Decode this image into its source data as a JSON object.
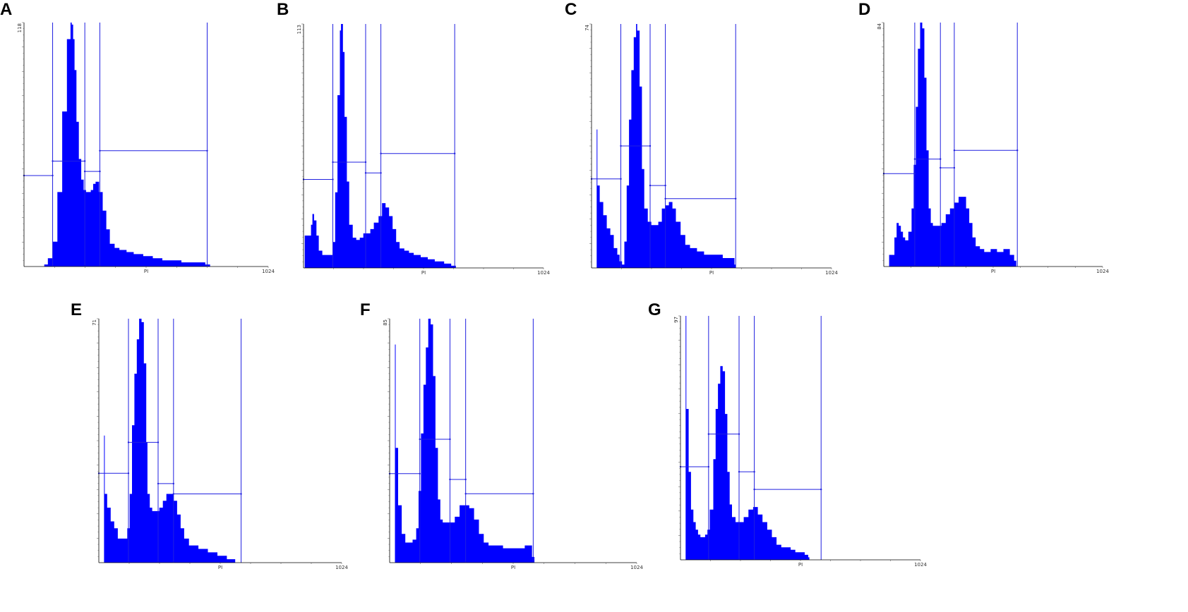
{
  "colors": {
    "fill": "#0000ff",
    "gate": "#2020e0",
    "axis": "#000000"
  },
  "x_axis_label": "PI",
  "x_axis_max_label": "1024",
  "chart_data": [
    {
      "type": "area",
      "letter": "A",
      "xlabel": "PI",
      "xlim": [
        0,
        1024
      ],
      "ylim": [
        0,
        118
      ],
      "ymax_label": "118",
      "series": [
        {
          "x": [
            0,
            60,
            85,
            100,
            120,
            140,
            160,
            180,
            195,
            200,
            206,
            212,
            220,
            230,
            240,
            250,
            260,
            270,
            280,
            290,
            300,
            315,
            330,
            345,
            360,
            380,
            400,
            430,
            460,
            500,
            540,
            580,
            620,
            660,
            700,
            760,
            770,
            780,
            1024
          ],
          "y": [
            0,
            0,
            1,
            4,
            12,
            36,
            75,
            110,
            118,
            117,
            110,
            95,
            70,
            52,
            42,
            37,
            36,
            36,
            37,
            40,
            41,
            36,
            27,
            18,
            11,
            9,
            8,
            7,
            6,
            5,
            4,
            3,
            3,
            2,
            2,
            1,
            1,
            0,
            0
          ]
        }
      ],
      "gate_lines": [
        120,
        255,
        318,
        768
      ],
      "markers": [
        {
          "x1": 0,
          "x2": 120,
          "y": 44
        },
        {
          "x1": 120,
          "x2": 255,
          "y": 51
        },
        {
          "x1": 255,
          "x2": 318,
          "y": 46
        },
        {
          "x1": 318,
          "x2": 768,
          "y": 56
        }
      ]
    },
    {
      "type": "area",
      "letter": "B",
      "xlabel": "PI",
      "xlim": [
        0,
        1024
      ],
      "ylim": [
        0,
        113
      ],
      "ymax_label": "113",
      "series": [
        {
          "x": [
            0,
            5,
            15,
            25,
            32,
            38,
            45,
            55,
            65,
            80,
            95,
            110,
            125,
            135,
            145,
            155,
            160,
            168,
            175,
            185,
            195,
            210,
            225,
            240,
            255,
            270,
            285,
            300,
            320,
            335,
            350,
            365,
            380,
            395,
            410,
            430,
            450,
            470,
            500,
            530,
            560,
            600,
            630,
            640,
            650,
            1024
          ],
          "y": [
            0,
            15,
            15,
            15,
            20,
            25,
            22,
            15,
            8,
            6,
            6,
            6,
            12,
            35,
            80,
            110,
            113,
            100,
            70,
            40,
            20,
            14,
            13,
            14,
            16,
            16,
            18,
            21,
            24,
            30,
            28,
            24,
            18,
            12,
            9,
            8,
            7,
            6,
            5,
            4,
            3,
            2,
            1,
            1,
            0,
            0
          ]
        }
      ],
      "gate_lines": [
        125,
        265,
        330,
        645
      ],
      "markers": [
        {
          "x1": 0,
          "x2": 125,
          "y": 41
        },
        {
          "x1": 125,
          "x2": 265,
          "y": 49
        },
        {
          "x1": 265,
          "x2": 330,
          "y": 44
        },
        {
          "x1": 330,
          "x2": 645,
          "y": 53
        }
      ]
    },
    {
      "type": "area",
      "letter": "C",
      "xlabel": "PI",
      "xlim": [
        0,
        1024
      ],
      "ylim": [
        0,
        74
      ],
      "ymax_label": "74",
      "series": [
        {
          "x": [
            0,
            22,
            25,
            35,
            50,
            65,
            80,
            95,
            110,
            120,
            130,
            140,
            150,
            160,
            170,
            180,
            190,
            195,
            205,
            215,
            225,
            240,
            255,
            270,
            285,
            300,
            315,
            330,
            345,
            360,
            380,
            400,
            420,
            450,
            480,
            520,
            560,
            590,
            610,
            615,
            1024
          ],
          "y": [
            0,
            42,
            25,
            20,
            16,
            12,
            10,
            6,
            4,
            2,
            1,
            8,
            25,
            45,
            60,
            70,
            74,
            72,
            55,
            30,
            18,
            14,
            13,
            13,
            14,
            18,
            19,
            20,
            18,
            14,
            10,
            7,
            6,
            5,
            4,
            4,
            3,
            3,
            1,
            0,
            0
          ]
        }
      ],
      "gate_lines": [
        125,
        250,
        315,
        615
      ],
      "markers": [
        {
          "x1": 0,
          "x2": 125,
          "y": 27
        },
        {
          "x1": 125,
          "x2": 250,
          "y": 37
        },
        {
          "x1": 250,
          "x2": 315,
          "y": 25
        },
        {
          "x1": 315,
          "x2": 615,
          "y": 21
        }
      ]
    },
    {
      "type": "area",
      "letter": "D",
      "xlabel": "PI",
      "xlim": [
        0,
        1024
      ],
      "ylim": [
        0,
        84
      ],
      "ymax_label": "84",
      "series": [
        {
          "x": [
            0,
            25,
            35,
            50,
            60,
            70,
            80,
            90,
            100,
            115,
            130,
            140,
            150,
            160,
            170,
            180,
            190,
            200,
            210,
            220,
            230,
            250,
            270,
            290,
            310,
            330,
            350,
            370,
            385,
            400,
            415,
            430,
            450,
            470,
            500,
            530,
            560,
            590,
            610,
            620,
            1024
          ],
          "y": [
            0,
            4,
            4,
            10,
            15,
            14,
            12,
            10,
            9,
            12,
            20,
            35,
            55,
            75,
            84,
            82,
            65,
            40,
            20,
            15,
            14,
            14,
            15,
            18,
            20,
            22,
            24,
            24,
            20,
            15,
            10,
            7,
            6,
            5,
            6,
            5,
            6,
            4,
            2,
            0,
            0
          ]
        }
      ],
      "gate_lines": [
        145,
        265,
        330,
        625
      ],
      "markers": [
        {
          "x1": 0,
          "x2": 145,
          "y": 32
        },
        {
          "x1": 145,
          "x2": 265,
          "y": 37
        },
        {
          "x1": 265,
          "x2": 330,
          "y": 34
        },
        {
          "x1": 330,
          "x2": 625,
          "y": 40
        }
      ]
    },
    {
      "type": "area",
      "letter": "E",
      "xlabel": "PI",
      "xlim": [
        0,
        1024
      ],
      "ylim": [
        0,
        71
      ],
      "ymax_label": "71",
      "series": [
        {
          "x": [
            0,
            22,
            25,
            35,
            50,
            65,
            80,
            95,
            110,
            120,
            130,
            140,
            150,
            160,
            170,
            180,
            190,
            200,
            205,
            215,
            225,
            240,
            255,
            270,
            285,
            300,
            315,
            330,
            345,
            360,
            380,
            400,
            420,
            440,
            460,
            480,
            500,
            520,
            540,
            560,
            575,
            580,
            1024
          ],
          "y": [
            0,
            37,
            20,
            16,
            12,
            10,
            7,
            7,
            7,
            10,
            20,
            40,
            55,
            65,
            71,
            70,
            58,
            35,
            20,
            16,
            15,
            15,
            16,
            18,
            20,
            20,
            18,
            14,
            10,
            7,
            5,
            5,
            4,
            4,
            3,
            3,
            2,
            2,
            1,
            1,
            0,
            0,
            0
          ]
        }
      ],
      "gate_lines": [
        125,
        250,
        315,
        600
      ],
      "markers": [
        {
          "x1": 0,
          "x2": 125,
          "y": 26
        },
        {
          "x1": 125,
          "x2": 250,
          "y": 35
        },
        {
          "x1": 250,
          "x2": 315,
          "y": 23
        },
        {
          "x1": 315,
          "x2": 600,
          "y": 20
        }
      ]
    },
    {
      "type": "area",
      "letter": "F",
      "xlabel": "PI",
      "xlim": [
        0,
        1024
      ],
      "ylim": [
        0,
        85
      ],
      "ymax_label": "85",
      "series": [
        {
          "x": [
            0,
            22,
            25,
            35,
            50,
            65,
            80,
            95,
            105,
            110,
            120,
            130,
            140,
            150,
            160,
            170,
            180,
            190,
            200,
            210,
            220,
            230,
            250,
            270,
            290,
            310,
            330,
            350,
            370,
            390,
            410,
            440,
            470,
            500,
            530,
            560,
            580,
            590,
            600,
            1024
          ],
          "y": [
            0,
            76,
            40,
            20,
            10,
            7,
            7,
            8,
            8,
            12,
            25,
            45,
            62,
            75,
            85,
            83,
            65,
            40,
            22,
            15,
            14,
            14,
            14,
            16,
            20,
            20,
            19,
            15,
            10,
            7,
            6,
            6,
            5,
            5,
            5,
            6,
            6,
            2,
            0,
            0
          ]
        }
      ],
      "gate_lines": [
        125,
        250,
        315,
        595
      ],
      "markers": [
        {
          "x1": 0,
          "x2": 125,
          "y": 31
        },
        {
          "x1": 125,
          "x2": 250,
          "y": 43
        },
        {
          "x1": 250,
          "x2": 315,
          "y": 29
        },
        {
          "x1": 315,
          "x2": 595,
          "y": 24
        }
      ]
    },
    {
      "type": "area",
      "letter": "G",
      "xlabel": "PI",
      "xlim": [
        0,
        1024
      ],
      "ylim": [
        0,
        97
      ],
      "ymax_label": "97",
      "series": [
        {
          "x": [
            0,
            22,
            25,
            35,
            45,
            55,
            65,
            75,
            85,
            95,
            105,
            115,
            125,
            140,
            150,
            160,
            170,
            180,
            190,
            200,
            210,
            220,
            235,
            250,
            270,
            290,
            310,
            330,
            350,
            370,
            390,
            410,
            430,
            450,
            470,
            490,
            510,
            530,
            545,
            550,
            1024
          ],
          "y": [
            0,
            97,
            60,
            35,
            20,
            15,
            12,
            10,
            9,
            9,
            10,
            12,
            20,
            40,
            60,
            70,
            77,
            75,
            58,
            35,
            22,
            17,
            15,
            15,
            17,
            20,
            21,
            18,
            15,
            12,
            9,
            6,
            5,
            5,
            4,
            3,
            3,
            2,
            1,
            0,
            0
          ]
        }
      ],
      "gate_lines": [
        120,
        250,
        315,
        600
      ],
      "markers": [
        {
          "x1": 0,
          "x2": 120,
          "y": 37
        },
        {
          "x1": 120,
          "x2": 250,
          "y": 50
        },
        {
          "x1": 250,
          "x2": 315,
          "y": 35
        },
        {
          "x1": 315,
          "x2": 600,
          "y": 28
        }
      ]
    }
  ]
}
